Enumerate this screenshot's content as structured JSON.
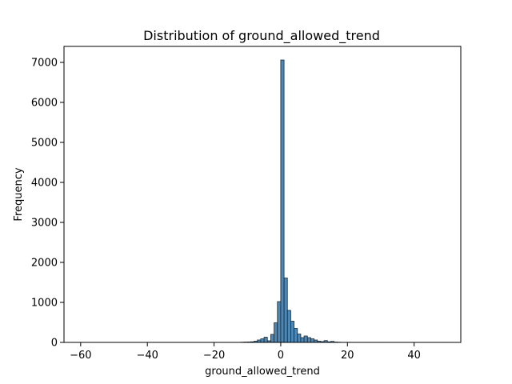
{
  "chart_data": {
    "type": "bar",
    "title": "Distribution of ground_allowed_trend",
    "xlabel": "ground_allowed_trend",
    "ylabel": "Frequency",
    "xlim": [
      -65,
      54
    ],
    "ylim": [
      0,
      7400
    ],
    "xticks": [
      -60,
      -40,
      -20,
      0,
      20,
      40
    ],
    "yticks": [
      0,
      1000,
      2000,
      3000,
      4000,
      5000,
      6000,
      7000
    ],
    "grid": false,
    "bar_color": "#4c87b6",
    "bin_width": 1.0,
    "series": [
      {
        "bins": [
          {
            "x0": -60,
            "x1": -59,
            "value": 2
          },
          {
            "x0": -12,
            "x1": -11,
            "value": 5
          },
          {
            "x0": -11,
            "x1": -10,
            "value": 8
          },
          {
            "x0": -10,
            "x1": -9,
            "value": 10
          },
          {
            "x0": -9,
            "x1": -8,
            "value": 15
          },
          {
            "x0": -8,
            "x1": -7,
            "value": 30
          },
          {
            "x0": -7,
            "x1": -6,
            "value": 60
          },
          {
            "x0": -6,
            "x1": -5,
            "value": 90
          },
          {
            "x0": -5,
            "x1": -4,
            "value": 130
          },
          {
            "x0": -4,
            "x1": -3,
            "value": 40
          },
          {
            "x0": -3,
            "x1": -2,
            "value": 200
          },
          {
            "x0": -2,
            "x1": -1,
            "value": 490
          },
          {
            "x0": -1,
            "x1": 0,
            "value": 1020
          },
          {
            "x0": 0,
            "x1": 1,
            "value": 7060
          },
          {
            "x0": 1,
            "x1": 2,
            "value": 1610
          },
          {
            "x0": 2,
            "x1": 3,
            "value": 800
          },
          {
            "x0": 3,
            "x1": 4,
            "value": 530
          },
          {
            "x0": 4,
            "x1": 5,
            "value": 350
          },
          {
            "x0": 5,
            "x1": 6,
            "value": 210
          },
          {
            "x0": 6,
            "x1": 7,
            "value": 120
          },
          {
            "x0": 7,
            "x1": 8,
            "value": 160
          },
          {
            "x0": 8,
            "x1": 9,
            "value": 120
          },
          {
            "x0": 9,
            "x1": 10,
            "value": 90
          },
          {
            "x0": 10,
            "x1": 11,
            "value": 60
          },
          {
            "x0": 11,
            "x1": 12,
            "value": 30
          },
          {
            "x0": 12,
            "x1": 13,
            "value": 20
          },
          {
            "x0": 13,
            "x1": 14,
            "value": 45
          },
          {
            "x0": 14,
            "x1": 15,
            "value": 15
          },
          {
            "x0": 15,
            "x1": 16,
            "value": 25
          },
          {
            "x0": 16,
            "x1": 17,
            "value": 8
          },
          {
            "x0": 17,
            "x1": 18,
            "value": 5
          },
          {
            "x0": 20,
            "x1": 21,
            "value": 3
          },
          {
            "x0": 25,
            "x1": 26,
            "value": 2
          },
          {
            "x0": 30,
            "x1": 31,
            "value": 2
          },
          {
            "x0": 40,
            "x1": 41,
            "value": 2
          },
          {
            "x0": 48,
            "x1": 49,
            "value": 2
          }
        ]
      }
    ]
  }
}
